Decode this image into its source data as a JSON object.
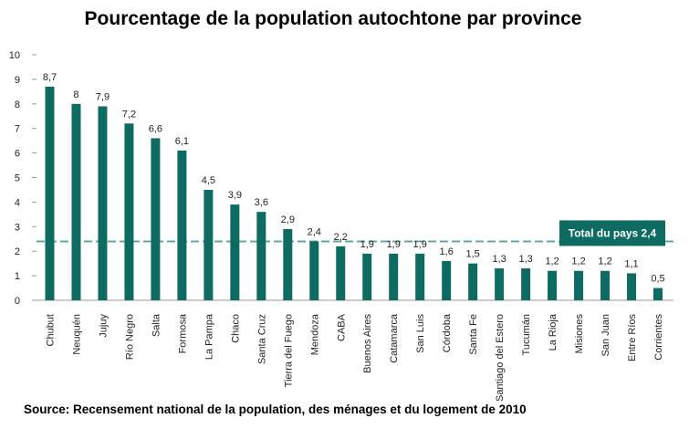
{
  "chart_data": {
    "type": "bar",
    "title": "Pourcentage de la population autochtone par province",
    "source": "Source: Recensement national de la population, des ménages et du logement  de 2010",
    "categories": [
      "Chubut",
      "Neuquén",
      "Jujuy",
      "Río Negro",
      "Salta",
      "Formosa",
      "La Pampa",
      "Chaco",
      "Santa Cruz",
      "Tierra del Fuego",
      "Mendoza",
      "CABA",
      "Buenos Aires",
      "Catamarca",
      "San Luis",
      "Córdoba",
      "Santa Fe",
      "Santiago del Estero",
      "Tucumán",
      "La Rioja",
      "Misiones",
      "San Juan",
      "Entre Ríos",
      "Corrientes"
    ],
    "values": [
      8.7,
      8,
      7.9,
      7.2,
      6.6,
      6.1,
      4.5,
      3.9,
      3.6,
      2.9,
      2.4,
      2.2,
      1.9,
      1.9,
      1.9,
      1.6,
      1.5,
      1.3,
      1.3,
      1.2,
      1.2,
      1.2,
      1.1,
      0.5
    ],
    "value_labels": [
      "8,7",
      "8",
      "7,9",
      "7,2",
      "6,6",
      "6,1",
      "4,5",
      "3,9",
      "3,6",
      "2,9",
      "2,4",
      "2,2",
      "1,9",
      "1,9",
      "1,9",
      "1,6",
      "1,5",
      "1,3",
      "1,3",
      "1,2",
      "1,2",
      "1,2",
      "1,1",
      "0,5"
    ],
    "ylim": [
      0,
      10
    ],
    "yticks": [
      "0",
      "1",
      "2",
      "3",
      "4",
      "5",
      "6",
      "7",
      "8",
      "9",
      "10"
    ],
    "grid": false,
    "bar_color": "#0e6b62",
    "reference_line": {
      "value": 2.4,
      "label": "Total du pays 2,4",
      "color": "#5fa8a0"
    }
  }
}
